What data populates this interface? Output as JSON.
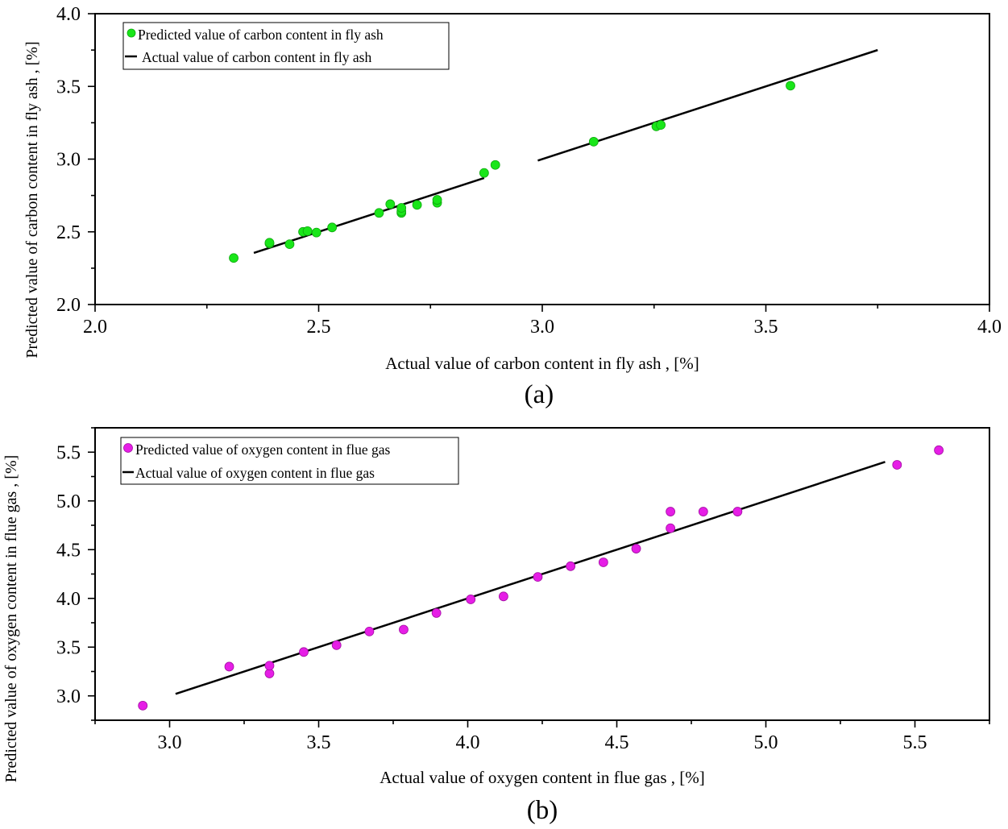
{
  "chart_data": [
    {
      "panel_label": "(a)",
      "type": "scatter",
      "xlabel": "Actual value of carbon content in fly ash , [%]",
      "ylabel": "Predicted value of carbon content in fly ash , [%]",
      "xlim": [
        2.0,
        4.0
      ],
      "ylim": [
        2.0,
        4.0
      ],
      "x_major_ticks": [
        "2.0",
        "2.5",
        "3.0",
        "3.5",
        "4.0"
      ],
      "y_major_ticks": [
        "2.0",
        "2.5",
        "3.0",
        "3.5",
        "4.0"
      ],
      "grid": false,
      "legend_position": "top-left",
      "series": [
        {
          "name": "Predicted value of carbon content in fly ash",
          "kind": "points",
          "color": "#19e619",
          "x": [
            2.31,
            2.39,
            2.39,
            2.435,
            2.465,
            2.475,
            2.495,
            2.53,
            2.635,
            2.66,
            2.685,
            2.685,
            2.685,
            2.72,
            2.765,
            2.765,
            2.87,
            2.895,
            3.115,
            3.255,
            3.265,
            3.555
          ],
          "y": [
            2.32,
            2.42,
            2.425,
            2.415,
            2.5,
            2.505,
            2.495,
            2.53,
            2.63,
            2.69,
            2.63,
            2.64,
            2.665,
            2.685,
            2.7,
            2.72,
            2.905,
            2.96,
            3.12,
            3.225,
            3.235,
            3.505
          ]
        },
        {
          "name": "Actual value of carbon content in fly ash",
          "kind": "line",
          "color": "#000000",
          "segments": [
            {
              "x": [
                2.355,
                2.87
              ],
              "y": [
                2.355,
                2.87
              ]
            },
            {
              "x": [
                2.99,
                3.75
              ],
              "y": [
                2.99,
                3.75
              ]
            }
          ]
        }
      ]
    },
    {
      "panel_label": "(b)",
      "type": "scatter",
      "xlabel": "Actual value of oxygen content in flue gas , [%]",
      "ylabel": "Predicted value of oxygen content in flue gas , [%]",
      "xlim": [
        2.75,
        5.75
      ],
      "ylim": [
        2.75,
        5.75
      ],
      "x_major_ticks": [
        "3.0",
        "3.5",
        "4.0",
        "4.5",
        "5.0",
        "5.5"
      ],
      "y_major_ticks": [
        "3.0",
        "3.5",
        "4.0",
        "4.5",
        "5.0",
        "5.5"
      ],
      "grid": false,
      "legend_position": "top-left",
      "series": [
        {
          "name": "Predicted value of oxygen content in flue gas",
          "kind": "points",
          "color": "#e61ee6",
          "x": [
            2.91,
            3.2,
            3.335,
            3.335,
            3.45,
            3.56,
            3.67,
            3.785,
            3.895,
            4.01,
            4.12,
            4.235,
            4.345,
            4.455,
            4.565,
            4.68,
            4.68,
            4.79,
            4.905,
            5.44,
            5.58
          ],
          "y": [
            2.9,
            3.3,
            3.23,
            3.31,
            3.45,
            3.52,
            3.66,
            3.68,
            3.85,
            3.99,
            4.02,
            4.22,
            4.33,
            4.37,
            4.51,
            4.72,
            4.89,
            4.89,
            4.89,
            5.37,
            5.52
          ]
        },
        {
          "name": "Actual value of oxygen content in flue gas",
          "kind": "line",
          "color": "#000000",
          "segments": [
            {
              "x": [
                3.02,
                5.4
              ],
              "y": [
                3.02,
                5.4
              ]
            }
          ]
        }
      ]
    }
  ]
}
